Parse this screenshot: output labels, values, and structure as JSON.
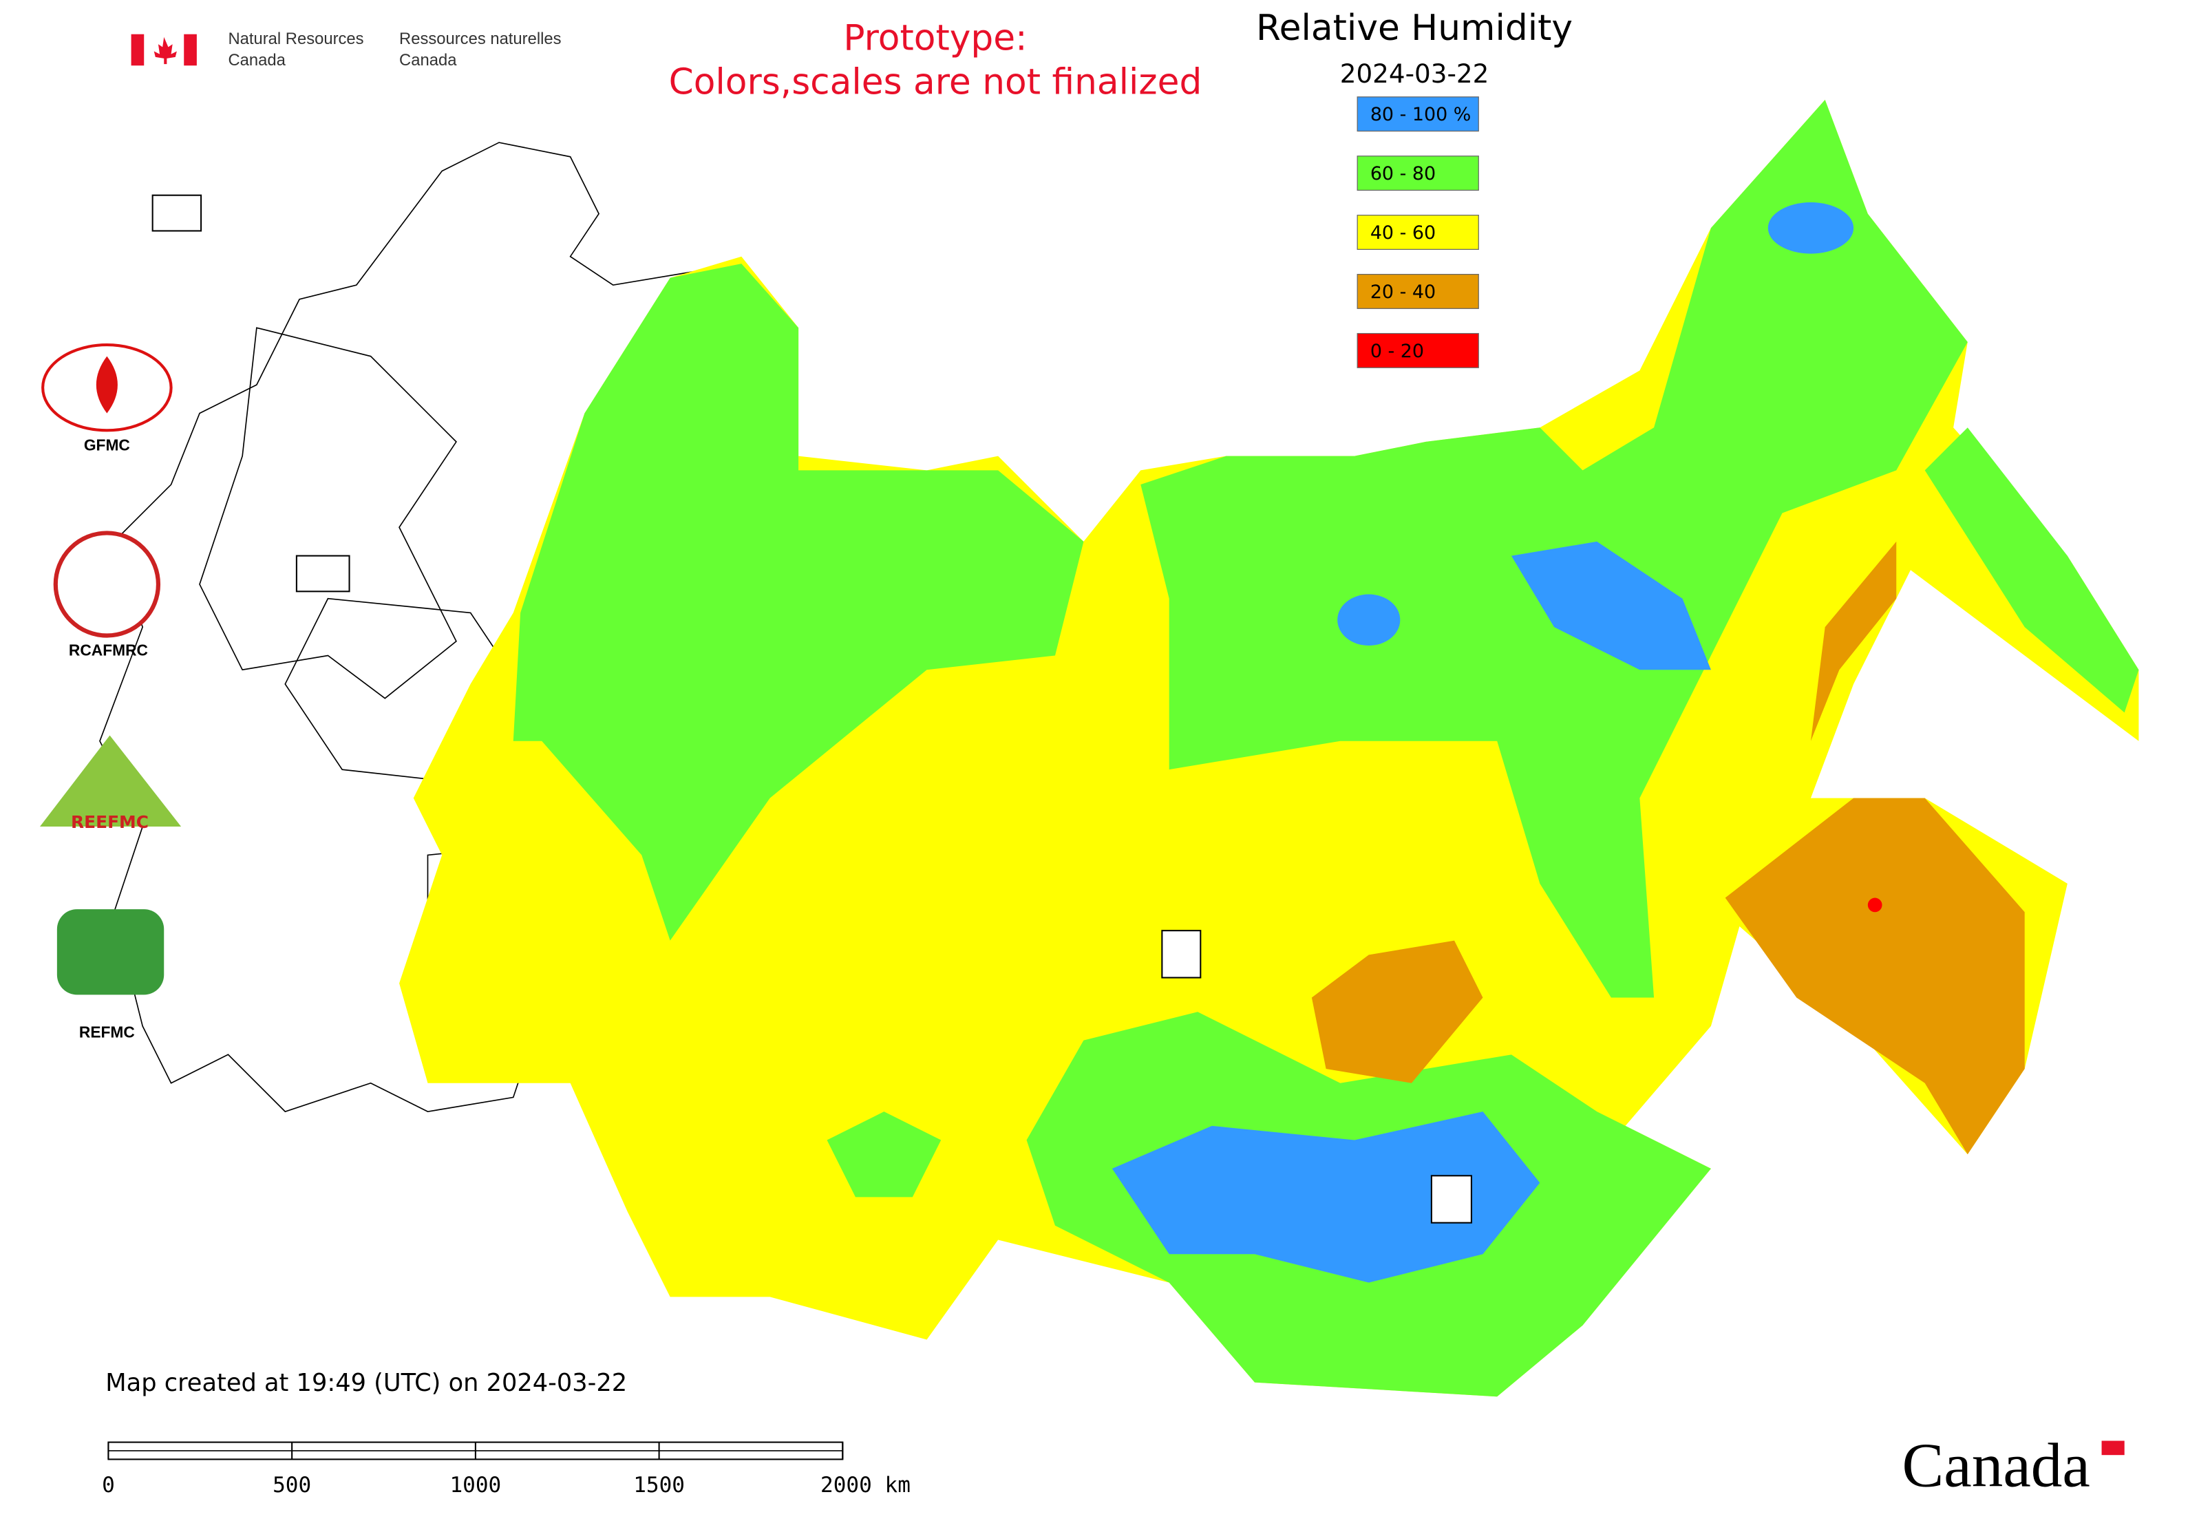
{
  "header": {
    "agency_en": [
      "Natural Resources",
      "Canada"
    ],
    "agency_fr": [
      "Ressources naturelles",
      "Canada"
    ],
    "prototype": [
      "Prototype:",
      "Colors,scales are not finalized"
    ]
  },
  "map": {
    "title": "Relative Humidity",
    "date": "2024-03-22",
    "legend": [
      {
        "label": "80 - 100 %",
        "color": "#3399ff"
      },
      {
        "label": "60 - 80",
        "color": "#66ff33"
      },
      {
        "label": "40 - 60",
        "color": "#ffff00"
      },
      {
        "label": "20 - 40",
        "color": "#e69900"
      },
      {
        "label": "0 - 20",
        "color": "#ff0000"
      }
    ]
  },
  "logos": [
    "GFMC",
    "RCAFMRC",
    "REFMC"
  ],
  "footer": {
    "created": "Map created at 19:49 (UTC) on 2024-03-22",
    "scale_labels": [
      "0",
      "500",
      "1000",
      "1500",
      "2000 km"
    ],
    "wordmark": "Canada"
  }
}
